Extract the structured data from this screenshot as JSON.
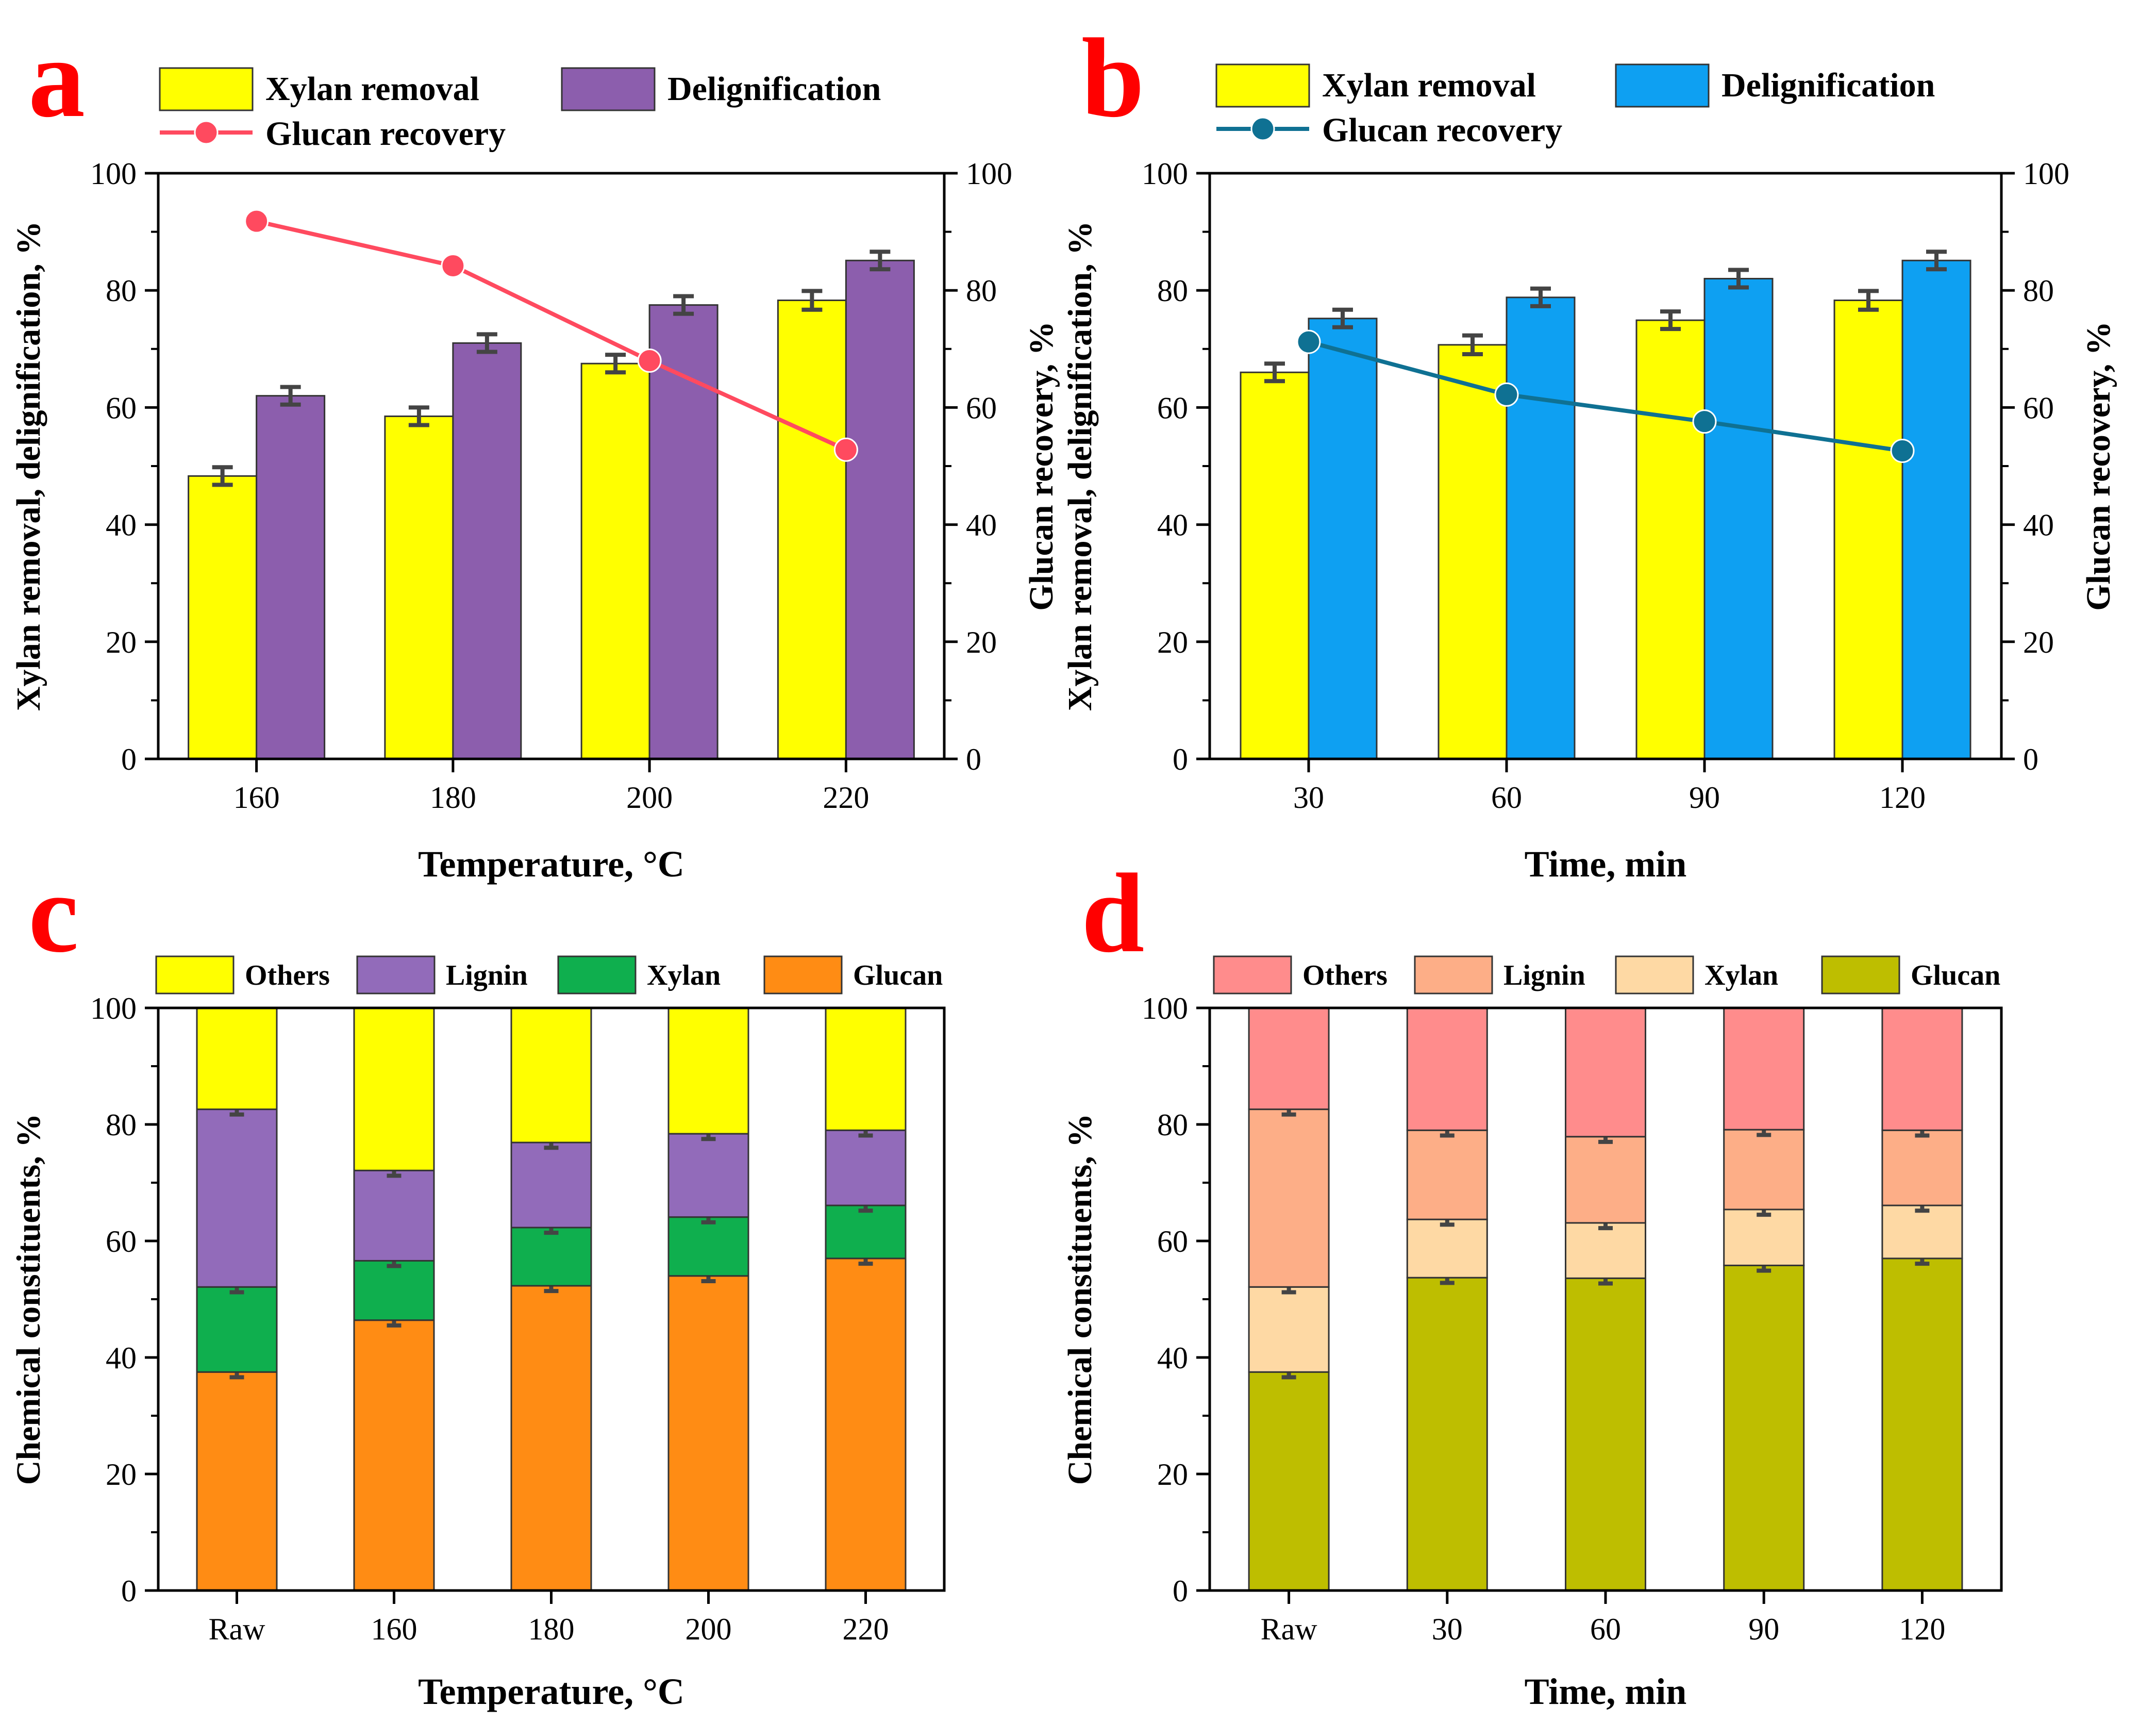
{
  "chart_data": [
    {
      "panel": "a",
      "type": "bar",
      "xlabel": "Temperature, °C",
      "ylabel": "Xylan removal, delignification, %",
      "y2label": "Glucan recovery, %",
      "categories": [
        "160",
        "180",
        "200",
        "220"
      ],
      "ylim": [
        0,
        100
      ],
      "y2lim": [
        0,
        100
      ],
      "yticks": [
        "0",
        "20",
        "40",
        "60",
        "80",
        "100"
      ],
      "series": [
        {
          "name": "Xylan removal",
          "color": "#FFFF00",
          "values": [
            48.3,
            58.5,
            67.5,
            78.3
          ],
          "errors": [
            1.5,
            1.5,
            1.5,
            1.6
          ]
        },
        {
          "name": "Delignification",
          "color": "#8C5EAD",
          "values": [
            62.0,
            71.0,
            77.5,
            85.1
          ],
          "errors": [
            1.5,
            1.5,
            1.5,
            1.5
          ]
        }
      ],
      "line": {
        "name": "Glucan recovery",
        "color": "#FF4A5F",
        "values": [
          91.8,
          84.2,
          68.0,
          52.8
        ]
      }
    },
    {
      "panel": "b",
      "type": "bar",
      "xlabel": "Time, min",
      "ylabel": "Xylan removal, delignification, %",
      "y2label": "Glucan recovery, %",
      "categories": [
        "30",
        "60",
        "90",
        "120"
      ],
      "ylim": [
        0,
        100
      ],
      "y2lim": [
        0,
        100
      ],
      "yticks": [
        "0",
        "20",
        "40",
        "60",
        "80",
        "100"
      ],
      "series": [
        {
          "name": "Xylan removal",
          "color": "#FFFF00",
          "values": [
            66.0,
            70.7,
            74.9,
            78.3
          ],
          "errors": [
            1.5,
            1.6,
            1.5,
            1.6
          ]
        },
        {
          "name": "Delignification",
          "color": "#0EA0F2",
          "values": [
            75.2,
            78.8,
            82.0,
            85.1
          ],
          "errors": [
            1.5,
            1.5,
            1.5,
            1.5
          ]
        }
      ],
      "line": {
        "name": "Glucan recovery",
        "color": "#0F7193",
        "values": [
          71.2,
          62.2,
          57.6,
          52.6
        ]
      }
    },
    {
      "panel": "c",
      "type": "bar",
      "stacked": true,
      "xlabel": "Temperature, °C",
      "ylabel": "Chemical constituents, %",
      "categories": [
        "Raw",
        "160",
        "180",
        "200",
        "220"
      ],
      "ylim": [
        0,
        100
      ],
      "yticks": [
        "0",
        "20",
        "40",
        "60",
        "80",
        "100"
      ],
      "legend": [
        "Others",
        "Lignin",
        "Xylan",
        "Glucan"
      ],
      "series": [
        {
          "name": "Glucan",
          "color": "#FF8C14",
          "values": [
            37.5,
            46.4,
            52.3,
            54.0,
            57.0
          ],
          "errors": [
            0.9,
            0.9,
            0.9,
            0.9,
            0.9
          ]
        },
        {
          "name": "Xylan",
          "color": "#0FAF4E",
          "values": [
            14.6,
            10.2,
            10.0,
            10.1,
            9.1
          ],
          "errors": [
            0.9,
            0.9,
            0.9,
            0.9,
            0.9
          ]
        },
        {
          "name": "Lignin",
          "color": "#926BBA",
          "values": [
            30.5,
            15.5,
            14.6,
            14.3,
            12.9
          ],
          "errors": [
            0.9,
            0.9,
            0.9,
            0.9,
            0.9
          ]
        },
        {
          "name": "Others",
          "color": "#FFFF00",
          "values": [
            17.4,
            27.9,
            23.1,
            21.6,
            21.0
          ],
          "errors": [
            0,
            0,
            0,
            0,
            0
          ]
        }
      ]
    },
    {
      "panel": "d",
      "type": "bar",
      "stacked": true,
      "xlabel": "Time, min",
      "ylabel": "Chemical constituents, %",
      "categories": [
        "Raw",
        "30",
        "60",
        "90",
        "120"
      ],
      "ylim": [
        0,
        100
      ],
      "yticks": [
        "0",
        "20",
        "40",
        "60",
        "80",
        "100"
      ],
      "legend": [
        "Others",
        "Lignin",
        "Xylan",
        "Glucan"
      ],
      "series": [
        {
          "name": "Glucan",
          "color": "#BEBE00",
          "values": [
            37.5,
            53.7,
            53.6,
            55.8,
            57.0
          ],
          "errors": [
            0.9,
            0.9,
            0.9,
            0.9,
            0.9
          ]
        },
        {
          "name": "Xylan",
          "color": "#FED9A4",
          "values": [
            14.6,
            10.0,
            9.5,
            9.6,
            9.1
          ],
          "errors": [
            0.9,
            0.9,
            0.9,
            0.9,
            0.9
          ]
        },
        {
          "name": "Lignin",
          "color": "#FDAE87",
          "values": [
            30.5,
            15.3,
            14.8,
            13.7,
            12.9
          ],
          "errors": [
            0.9,
            0.9,
            0.9,
            0.9,
            0.9
          ]
        },
        {
          "name": "Others",
          "color": "#FF8C8C",
          "values": [
            17.4,
            21.0,
            22.1,
            20.9,
            21.0
          ],
          "errors": [
            0,
            0,
            0,
            0,
            0
          ]
        }
      ]
    }
  ]
}
